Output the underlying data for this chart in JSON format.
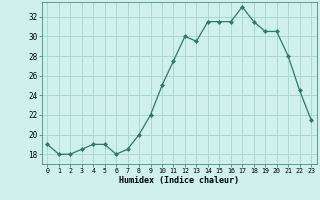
{
  "x": [
    0,
    1,
    2,
    3,
    4,
    5,
    6,
    7,
    8,
    9,
    10,
    11,
    12,
    13,
    14,
    15,
    16,
    17,
    18,
    19,
    20,
    21,
    22,
    23
  ],
  "y": [
    19,
    18,
    18,
    18.5,
    19,
    19,
    18,
    18.5,
    20,
    22,
    25,
    27.5,
    30,
    29.5,
    31.5,
    31.5,
    31.5,
    33,
    31.5,
    30.5,
    30.5,
    28,
    24.5,
    21.5
  ],
  "xlabel": "Humidex (Indice chaleur)",
  "xlim_min": -0.5,
  "xlim_max": 23.5,
  "ylim_min": 17.0,
  "ylim_max": 33.5,
  "yticks": [
    18,
    20,
    22,
    24,
    26,
    28,
    30,
    32
  ],
  "xticks": [
    0,
    1,
    2,
    3,
    4,
    5,
    6,
    7,
    8,
    9,
    10,
    11,
    12,
    13,
    14,
    15,
    16,
    17,
    18,
    19,
    20,
    21,
    22,
    23
  ],
  "line_color": "#2d7a6a",
  "bg_color": "#cff0ec",
  "grid_color": "#aad8d2",
  "face_color": "#cff0ec"
}
